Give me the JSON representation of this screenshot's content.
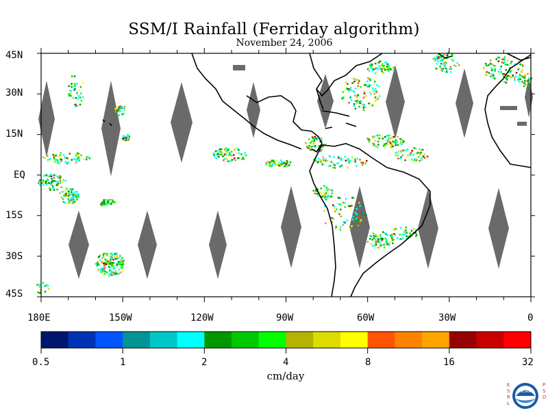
{
  "title": "SSM/I Rainfall (Ferriday algorithm)",
  "subtitle": "November 24, 2006",
  "lat_labels": [
    "45N",
    "30N",
    "15N",
    "EQ",
    "15S",
    "30S",
    "45S"
  ],
  "lon_labels": [
    "180E",
    "150W",
    "120W",
    "90W",
    "60W",
    "30W",
    "0"
  ],
  "colorbar": {
    "unit": "cm/day",
    "tick_labels": [
      "0.5",
      "1",
      "2",
      "4",
      "8",
      "16",
      "32"
    ],
    "colors": [
      "#00166e",
      "#0032b4",
      "#0055ff",
      "#009595",
      "#00c8c8",
      "#00ffff",
      "#009600",
      "#00c800",
      "#00ff00",
      "#b4b400",
      "#dcdc00",
      "#ffff00",
      "#ff5500",
      "#ff8200",
      "#ffa500",
      "#960000",
      "#c80000",
      "#ff0000"
    ]
  },
  "logo": {
    "left_letters": "ESRL",
    "right_letters": "PSD",
    "badge_text": "NOAA"
  }
}
